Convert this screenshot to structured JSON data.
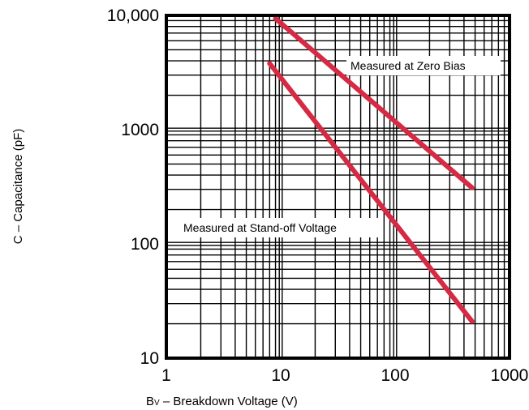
{
  "chart_data": {
    "type": "line",
    "title": "",
    "xlabel": "BV – Breakdown Voltage (V)",
    "xlabel_main": "B",
    "xlabel_sub": "V",
    "xlabel_rest": " – Breakdown Voltage (V)",
    "ylabel": "C – Capacitance (pF)",
    "xscale": "log",
    "yscale": "log",
    "xlim": [
      1,
      1000
    ],
    "ylim": [
      10,
      10000
    ],
    "x_ticks": [
      {
        "value": 1,
        "label": "1"
      },
      {
        "value": 10,
        "label": "10"
      },
      {
        "value": 100,
        "label": "100"
      },
      {
        "value": 1000,
        "label": "1000"
      }
    ],
    "y_ticks": [
      {
        "value": 10,
        "label": "10"
      },
      {
        "value": 100,
        "label": "100"
      },
      {
        "value": 1000,
        "label": "1000"
      },
      {
        "value": 10000,
        "label": "10,000"
      }
    ],
    "grid": true,
    "line_color": "#d62a44",
    "series": [
      {
        "name": "Measured at Zero Bias",
        "x": [
          9,
          470
        ],
        "y": [
          9400,
          310
        ]
      },
      {
        "name": "Measured at Stand-off Voltage",
        "x": [
          8,
          470
        ],
        "y": [
          3800,
          21
        ]
      }
    ],
    "annotations": [
      {
        "text": "Measured at Zero Bias",
        "series": 0
      },
      {
        "text": "Measured at Stand-off Voltage",
        "series": 1
      }
    ]
  }
}
